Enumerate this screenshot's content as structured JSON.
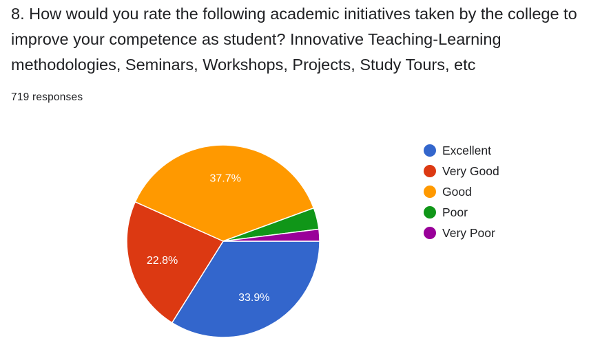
{
  "question": {
    "title": "8. How would you rate the following academic initiatives taken by the college to improve your competence as student? Innovative Teaching-Learning methodologies, Seminars, Workshops, Projects, Study Tours, etc",
    "responses": "719 responses"
  },
  "chart_data": {
    "type": "pie",
    "title": "8. How would you rate the following academic initiatives taken by the college to improve your competence as student? Innovative Teaching-Learning methodologies, Seminars, Workshops, Projects, Study Tours, etc",
    "categories": [
      "Excellent",
      "Very Good",
      "Good",
      "Poor",
      "Very Poor"
    ],
    "values": [
      33.9,
      22.8,
      37.7,
      3.6,
      2.0
    ],
    "value_labels": [
      "33.9%",
      "22.8%",
      "37.7%",
      "",
      ""
    ],
    "colors": [
      "#3366cc",
      "#dc3912",
      "#ff9900",
      "#109618",
      "#990099"
    ],
    "legend_position": "right",
    "start": "3 o'clock",
    "direction": "clockwise"
  }
}
